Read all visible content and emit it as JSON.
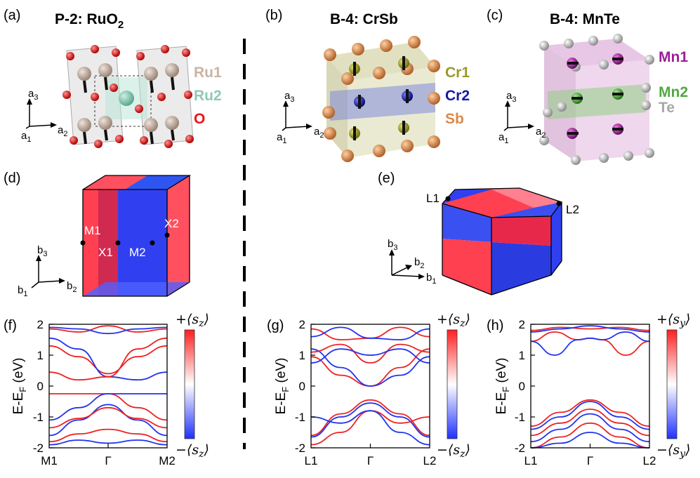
{
  "panels": {
    "a": {
      "label": "(a)",
      "title": "P-2: RuO",
      "title_sub": "2",
      "legend": [
        {
          "text": "Ru1",
          "color": "#c8b4a6"
        },
        {
          "text": "Ru2",
          "color": "#8cc9b8"
        },
        {
          "text": "O",
          "color": "#e8141c"
        }
      ],
      "axes": {
        "v": "a",
        "v_sub": "3",
        "h": "a",
        "h_sub": "2",
        "o": "a",
        "o_sub": "1"
      }
    },
    "b": {
      "label": "(b)",
      "title": "B-4: CrSb",
      "legend": [
        {
          "text": "Cr1",
          "color": "#9a9a2a"
        },
        {
          "text": "Cr2",
          "color": "#1818a8"
        },
        {
          "text": "Sb",
          "color": "#d98a4a"
        }
      ],
      "axes": {
        "v": "a",
        "v_sub": "3",
        "h": "a",
        "h_sub": "2",
        "o": "a",
        "o_sub": "1"
      }
    },
    "c": {
      "label": "(c)",
      "title": "B-4: MnTe",
      "legend": [
        {
          "text": "Mn1",
          "color": "#9c1e96"
        },
        {
          "text": "Mn2",
          "color": "#52a840"
        },
        {
          "text": "Te",
          "color": "#a8a8a8"
        }
      ],
      "axes": {
        "v": "a",
        "v_sub": "3",
        "h": "a",
        "h_sub": "2",
        "o": "a",
        "o_sub": "1"
      }
    },
    "d": {
      "label": "(d)",
      "kpoints": [
        "M1",
        "X1",
        "M2",
        "X2"
      ],
      "axes": {
        "v": "b",
        "v_sub": "3",
        "h": "b",
        "h_sub": "2",
        "o": "b",
        "o_sub": "1"
      }
    },
    "e": {
      "label": "(e)",
      "kpoints": [
        "L1",
        "L2"
      ],
      "axes": {
        "v": "b",
        "v_sub": "3",
        "h": "b",
        "h_sub": "2",
        "o": "b",
        "o_sub": "1"
      }
    },
    "f": {
      "label": "(f)",
      "cb_top": "+⟨s",
      "cb_bot": "−⟨s",
      "cb_sub": "z"
    },
    "g": {
      "label": "(g)",
      "cb_top": "+⟨s",
      "cb_bot": "−⟨s",
      "cb_sub": "z"
    },
    "h": {
      "label": "(h)",
      "cb_top": "+⟨s",
      "cb_bot": "−⟨s",
      "cb_sub": "y"
    }
  },
  "colors": {
    "red": "#ee2222",
    "blue": "#2233ee",
    "pale": "#f2c6c6"
  },
  "chart_data": [
    {
      "id": "f",
      "type": "line",
      "title": "",
      "ylabel": "E-E_F (eV)",
      "ylabel_main": "E-E",
      "ylabel_sub": "F",
      "ylabel_unit": " (eV)",
      "ylim": [
        -2,
        2
      ],
      "yticks": [
        "2",
        "1",
        "0",
        "-1",
        "-2"
      ],
      "x_ticks": [
        "M1",
        "Γ",
        "M2"
      ],
      "colorbar": "⟨s_z⟩",
      "series": [
        {
          "color": "red",
          "x": [
            0,
            0.25,
            0.5,
            0.75,
            1
          ],
          "y": [
            1.3,
            0.95,
            0.4,
            0.95,
            1.3
          ]
        },
        {
          "color": "blue",
          "x": [
            0,
            0.25,
            0.5,
            0.75,
            1
          ],
          "y": [
            1.55,
            1.2,
            0.3,
            0.2,
            0.45
          ]
        },
        {
          "color": "red",
          "x": [
            0,
            0.25,
            0.5,
            0.75,
            1
          ],
          "y": [
            0.45,
            0.2,
            0.3,
            1.2,
            1.55
          ]
        },
        {
          "color": "red",
          "x": [
            0,
            0.25,
            0.5,
            0.75,
            1
          ],
          "y": [
            1.85,
            1.75,
            1.95,
            1.75,
            1.85
          ]
        },
        {
          "color": "blue",
          "x": [
            0,
            0.25,
            0.5,
            0.75,
            1
          ],
          "y": [
            1.9,
            1.85,
            1.7,
            1.85,
            1.9
          ]
        },
        {
          "color": "red",
          "x": [
            0,
            0.25,
            0.5,
            0.75,
            1
          ],
          "y": [
            -0.25,
            -0.25,
            -0.25,
            -0.7,
            -1.1
          ]
        },
        {
          "color": "blue",
          "x": [
            0,
            0.25,
            0.5,
            0.75,
            1
          ],
          "y": [
            -1.1,
            -0.7,
            -0.25,
            -0.25,
            -0.25
          ]
        },
        {
          "color": "blue",
          "x": [
            0,
            0.25,
            0.5,
            0.75,
            1
          ],
          "y": [
            -1.6,
            -1.1,
            -0.6,
            -1.1,
            -1.6
          ]
        },
        {
          "color": "red",
          "x": [
            0,
            0.25,
            0.5,
            0.75,
            1
          ],
          "y": [
            -1.35,
            -1.05,
            -0.7,
            -1.05,
            -1.35
          ]
        },
        {
          "color": "red",
          "x": [
            0,
            0.25,
            0.5,
            0.75,
            1
          ],
          "y": [
            -1.8,
            -1.55,
            -1.4,
            -1.55,
            -1.8
          ]
        },
        {
          "color": "blue",
          "x": [
            0,
            0.25,
            0.5,
            0.75,
            1
          ],
          "y": [
            -1.9,
            -1.75,
            -1.85,
            -1.75,
            -1.9
          ]
        }
      ]
    },
    {
      "id": "g",
      "type": "line",
      "title": "",
      "ylabel": "E-E_F (eV)",
      "ylabel_main": "E-E",
      "ylabel_sub": "F",
      "ylabel_unit": " (eV)",
      "ylim": [
        -2,
        2
      ],
      "yticks": [
        "2",
        "1",
        "0",
        "-1",
        "-2"
      ],
      "x_ticks": [
        "L1",
        "Γ",
        "L2"
      ],
      "colorbar": "⟨s_z⟩",
      "series": [
        {
          "color": "red",
          "x": [
            0,
            0.25,
            0.5,
            0.75,
            1
          ],
          "y": [
            -1.6,
            -0.9,
            -0.45,
            -0.9,
            -1.6
          ]
        },
        {
          "color": "blue",
          "x": [
            0,
            0.25,
            0.5,
            0.75,
            1
          ],
          "y": [
            -1.65,
            -1.0,
            -0.55,
            -1.0,
            -1.65
          ]
        },
        {
          "color": "red",
          "x": [
            0,
            0.25,
            0.5,
            0.75,
            1
          ],
          "y": [
            -1.9,
            -1.5,
            -0.8,
            -1.2,
            -1.0
          ]
        },
        {
          "color": "blue",
          "x": [
            0,
            0.25,
            0.5,
            0.75,
            1
          ],
          "y": [
            -1.0,
            -1.2,
            -0.8,
            -1.5,
            -1.9
          ]
        },
        {
          "color": "red",
          "x": [
            0,
            0.25,
            0.5,
            0.75,
            1
          ],
          "y": [
            0.95,
            0.35,
            0.0,
            0.6,
            1.2
          ]
        },
        {
          "color": "blue",
          "x": [
            0,
            0.25,
            0.5,
            0.75,
            1
          ],
          "y": [
            1.2,
            0.6,
            0.0,
            0.35,
            0.95
          ]
        },
        {
          "color": "red",
          "x": [
            0,
            0.25,
            0.5,
            0.75,
            1
          ],
          "y": [
            1.1,
            1.35,
            0.75,
            1.35,
            1.1
          ]
        },
        {
          "color": "blue",
          "x": [
            0,
            0.25,
            0.5,
            0.75,
            1
          ],
          "y": [
            0.75,
            1.2,
            1.0,
            1.2,
            0.75
          ]
        },
        {
          "color": "red",
          "x": [
            0,
            0.25,
            0.5,
            0.75,
            1
          ],
          "y": [
            1.85,
            1.5,
            1.55,
            1.9,
            1.6
          ]
        },
        {
          "color": "blue",
          "x": [
            0,
            0.25,
            0.5,
            0.75,
            1
          ],
          "y": [
            1.6,
            1.9,
            1.55,
            1.5,
            1.85
          ]
        }
      ]
    },
    {
      "id": "h",
      "type": "line",
      "title": "",
      "ylabel": "E-E_F (eV)",
      "ylabel_main": "E-E",
      "ylabel_sub": "F",
      "ylabel_unit": " (eV)",
      "ylim": [
        -2,
        2
      ],
      "yticks": [
        "2",
        "1",
        "0",
        "-1",
        "-2"
      ],
      "x_ticks": [
        "L1",
        "Γ",
        "L2"
      ],
      "colorbar": "⟨s_y⟩",
      "series": [
        {
          "color": "red",
          "x": [
            0,
            0.2,
            0.4,
            0.5,
            0.6,
            0.8,
            1
          ],
          "y": [
            1.45,
            1.75,
            1.5,
            1.55,
            1.5,
            1.0,
            1.45
          ]
        },
        {
          "color": "blue",
          "x": [
            0,
            0.2,
            0.4,
            0.5,
            0.6,
            0.8,
            1
          ],
          "y": [
            1.45,
            1.0,
            1.5,
            1.55,
            1.5,
            1.75,
            1.45
          ]
        },
        {
          "color": "red",
          "x": [
            0,
            0.25,
            0.5,
            0.75,
            1
          ],
          "y": [
            1.8,
            1.9,
            1.85,
            1.9,
            1.8
          ]
        },
        {
          "color": "blue",
          "x": [
            0,
            0.25,
            0.5,
            0.75,
            1
          ],
          "y": [
            1.75,
            1.85,
            1.95,
            1.85,
            1.75
          ]
        },
        {
          "color": "red",
          "x": [
            0,
            0.25,
            0.5,
            0.75,
            1
          ],
          "y": [
            -1.3,
            -0.85,
            -0.45,
            -0.85,
            -1.3
          ]
        },
        {
          "color": "blue",
          "x": [
            0,
            0.25,
            0.5,
            0.75,
            1
          ],
          "y": [
            -1.4,
            -1.0,
            -0.5,
            -1.0,
            -1.4
          ]
        },
        {
          "color": "red",
          "x": [
            0,
            0.25,
            0.5,
            0.75,
            1
          ],
          "y": [
            -1.6,
            -1.2,
            -0.75,
            -1.2,
            -1.6
          ]
        },
        {
          "color": "blue",
          "x": [
            0,
            0.25,
            0.5,
            0.75,
            1
          ],
          "y": [
            -1.8,
            -1.4,
            -0.9,
            -1.4,
            -1.8
          ]
        },
        {
          "color": "red",
          "x": [
            0,
            0.25,
            0.5,
            0.75,
            1
          ],
          "y": [
            -2.0,
            -1.65,
            -1.2,
            -1.65,
            -2.0
          ]
        },
        {
          "color": "blue",
          "x": [
            0,
            0.25,
            0.5,
            0.75,
            1
          ],
          "y": [
            -2.0,
            -1.85,
            -1.5,
            -1.85,
            -2.0
          ]
        }
      ]
    }
  ]
}
